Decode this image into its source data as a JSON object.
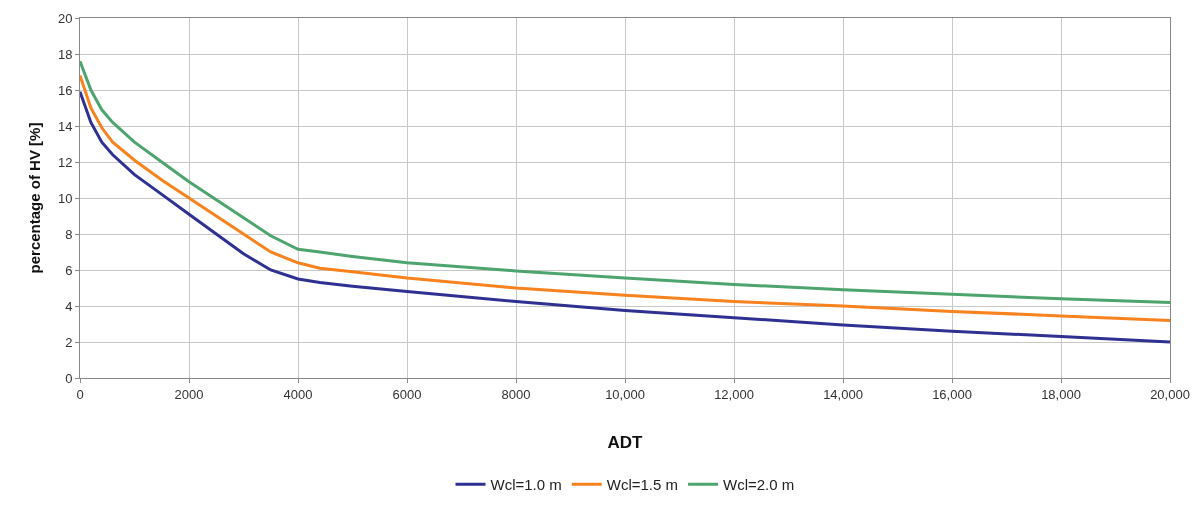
{
  "chart_data": {
    "type": "line",
    "xlabel": "ADT",
    "ylabel": "percentage of HV [%]",
    "x": [
      0,
      200,
      400,
      600,
      1000,
      1500,
      2000,
      2500,
      3000,
      3500,
      4000,
      4400,
      5000,
      6000,
      8000,
      10000,
      12000,
      14000,
      16000,
      18000,
      20000
    ],
    "series": [
      {
        "name": "Wcl=1.0 m",
        "color": "#2e3192",
        "values": [
          15.9,
          14.2,
          13.1,
          12.4,
          11.3,
          10.2,
          9.1,
          8.0,
          6.9,
          6.0,
          5.5,
          5.3,
          5.1,
          4.8,
          4.25,
          3.75,
          3.35,
          2.95,
          2.6,
          2.3,
          2.0
        ]
      },
      {
        "name": "Wcl=1.5 m",
        "color": "#f7821e",
        "values": [
          16.8,
          15.0,
          13.9,
          13.1,
          12.1,
          11.0,
          10.0,
          9.0,
          8.0,
          7.0,
          6.4,
          6.1,
          5.9,
          5.55,
          5.0,
          4.6,
          4.25,
          4.0,
          3.7,
          3.45,
          3.2
        ]
      },
      {
        "name": "Wcl=2.0 m",
        "color": "#4ea46e",
        "values": [
          17.6,
          16.0,
          14.9,
          14.2,
          13.1,
          12.0,
          10.9,
          9.9,
          8.9,
          7.9,
          7.15,
          7.0,
          6.75,
          6.4,
          5.95,
          5.55,
          5.2,
          4.9,
          4.65,
          4.4,
          4.2
        ]
      }
    ],
    "xlim": [
      0,
      20000
    ],
    "xticks": [
      0,
      2000,
      4000,
      6000,
      8000,
      {
        "value": 10000,
        "label": "10,000"
      },
      {
        "value": 12000,
        "label": "12,000"
      },
      {
        "value": 14000,
        "label": "14,000"
      },
      {
        "value": 16000,
        "label": "16,000"
      },
      {
        "value": 18000,
        "label": "18,000"
      },
      {
        "value": 20000,
        "label": "20,000"
      }
    ],
    "ylim": [
      0,
      20
    ],
    "yticks": [
      0,
      2,
      4,
      6,
      8,
      10,
      12,
      14,
      16,
      18,
      20
    ],
    "grid": true,
    "legend": "bottom",
    "marker": "none",
    "line_style": "solid"
  }
}
